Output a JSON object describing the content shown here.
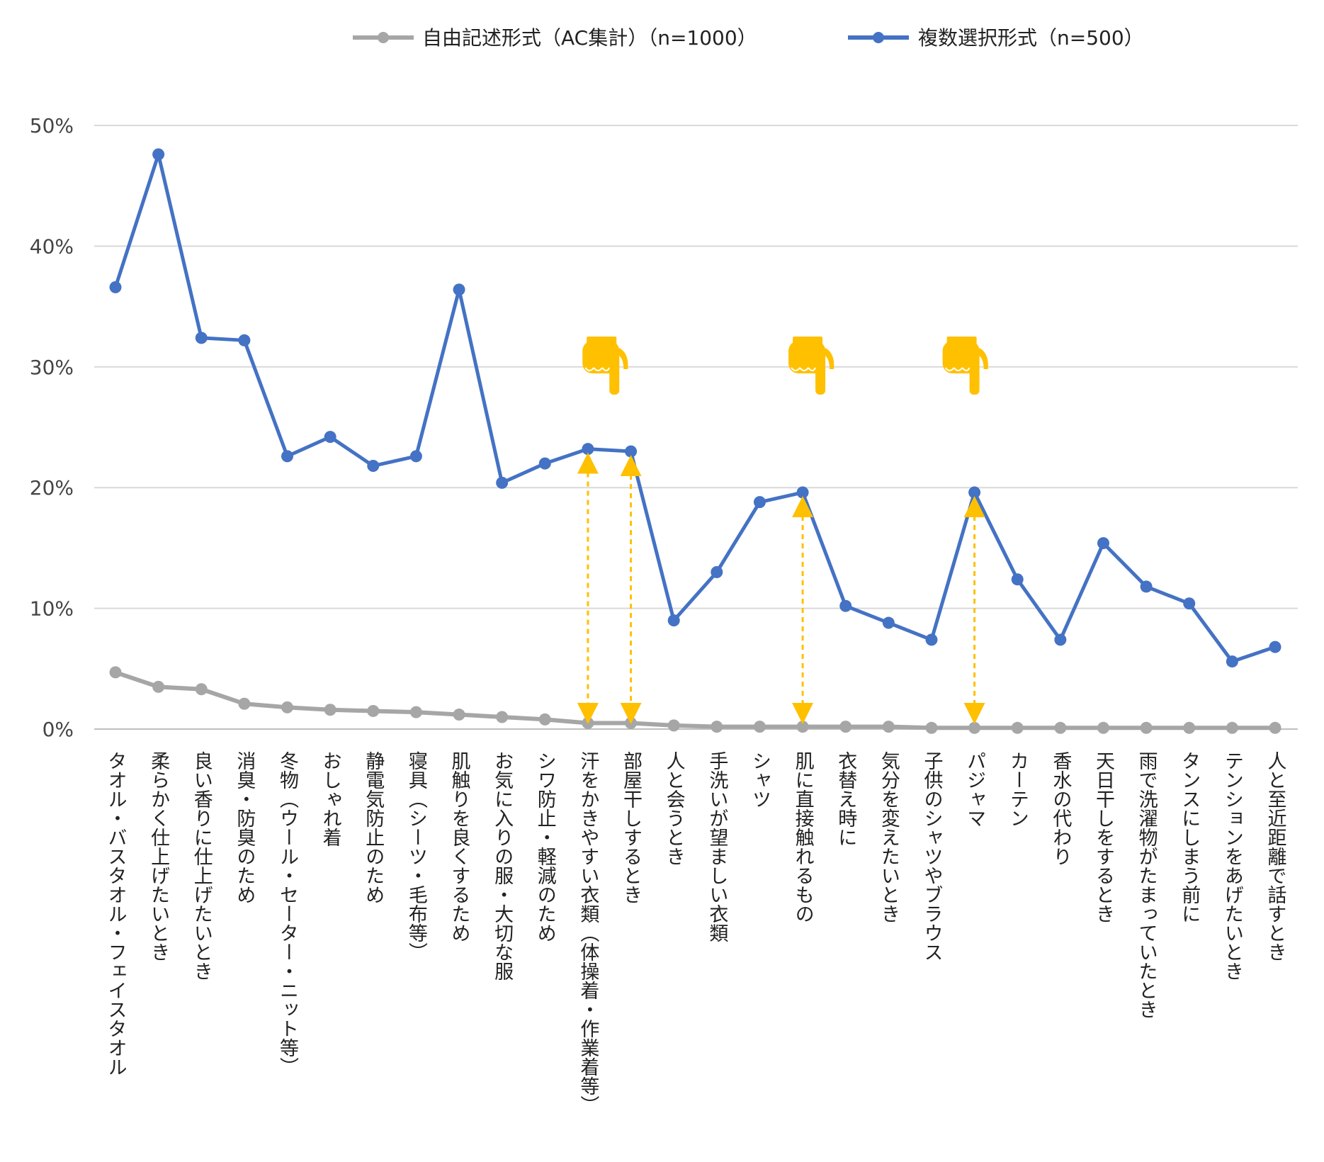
{
  "chart_data": {
    "type": "line",
    "ylim": [
      0,
      50
    ],
    "y_ticks": [
      "0%",
      "10%",
      "20%",
      "30%",
      "40%",
      "50%"
    ],
    "y_tick_values": [
      0,
      10,
      20,
      30,
      40,
      50
    ],
    "grid": true,
    "legend_position": "top",
    "categories": [
      "タオル・バスタオル・フェイスタオル",
      "柔らかく仕上げたいとき",
      "良い香りに仕上げたいとき",
      "消臭・防臭のため",
      "冬物（ウール・セーター・ニット等）",
      "おしゃれ着",
      "静電気防止のため",
      "寝具（シーツ・毛布等）",
      "肌触りを良くするため",
      "お気に入りの服・大切な服",
      "シワ防止・軽減のため",
      "汗をかきやすい衣類（体操着・作業着等）",
      "部屋干しするとき",
      "人と会うとき",
      "手洗いが望ましい衣類",
      "シャツ",
      "肌に直接触れるもの",
      "衣替え時に",
      "気分を変えたいとき",
      "子供のシャツやブラウス",
      "パジャマ",
      "カーテン",
      "香水の代わり",
      "天日干しをするとき",
      "雨で洗濯物がたまっていたとき",
      "タンスにしまう前に",
      "テンションをあげたいとき",
      "人と至近距離で話すとき"
    ],
    "series": [
      {
        "name": "自由記述形式（AC集計）（n=1000）",
        "color": "#a6a6a6",
        "values": [
          4.7,
          3.5,
          3.3,
          2.1,
          1.8,
          1.6,
          1.5,
          1.4,
          1.2,
          1.0,
          0.8,
          0.5,
          0.5,
          0.3,
          0.2,
          0.2,
          0.2,
          0.2,
          0.2,
          0.1,
          0.1,
          0.1,
          0.1,
          0.1,
          0.1,
          0.1,
          0.1,
          0.1
        ]
      },
      {
        "name": "複数選択形式（n=500）",
        "color": "#4472c4",
        "values": [
          36.6,
          47.6,
          32.4,
          32.2,
          22.6,
          24.2,
          21.8,
          22.6,
          36.4,
          20.4,
          22.0,
          23.2,
          23.0,
          9.0,
          13.0,
          18.8,
          19.6,
          10.2,
          8.8,
          7.4,
          19.6,
          12.4,
          7.4,
          15.4,
          11.8,
          10.4,
          5.6,
          6.8
        ]
      }
    ],
    "annotations": {
      "pointer_icon": "pointing-hand-down-icon",
      "pointer_color": "#ffc000",
      "arrow_color": "#ffc000",
      "highlighted_categories": [
        "汗をかきやすい衣類（体操着・作業着等）",
        "部屋干しするとき",
        "肌に直接触れるもの",
        "パジャマ"
      ]
    }
  }
}
